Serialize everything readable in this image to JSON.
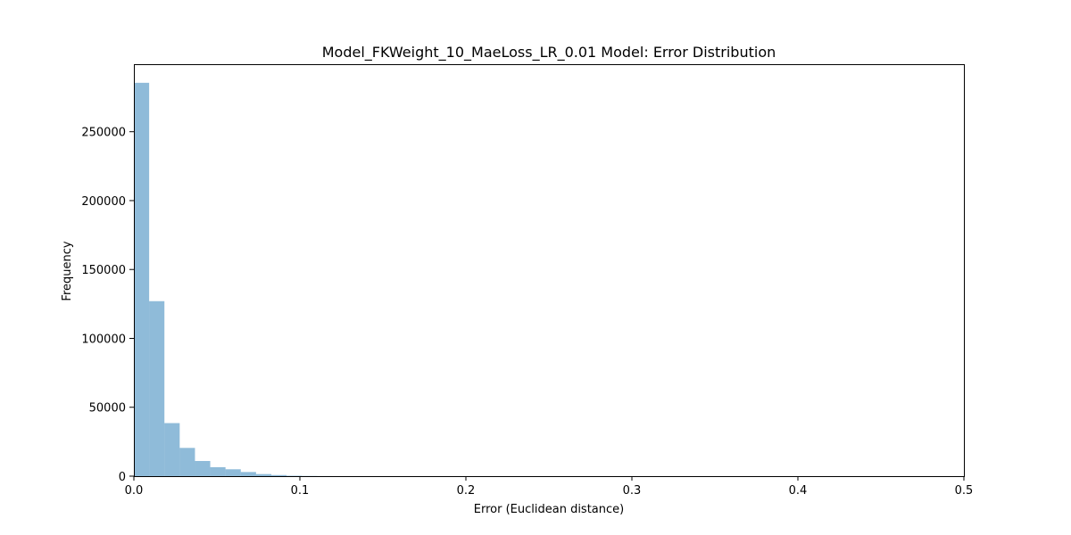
{
  "chart_data": {
    "type": "bar",
    "title": "Model_FKWeight_10_MaeLoss_LR_0.01 Model: Error Distribution",
    "xlabel": "Error (Euclidean distance)",
    "ylabel": "Frequency",
    "xlim": [
      0,
      0.5
    ],
    "ylim": [
      0,
      299000
    ],
    "grid": false,
    "legend": "none",
    "bar_color": "#1f77b4",
    "bar_opacity": 0.5,
    "x_ticks": [
      0.0,
      0.1,
      0.2,
      0.3,
      0.4,
      0.5
    ],
    "x_tick_labels": [
      "0.0",
      "0.1",
      "0.2",
      "0.3",
      "0.4",
      "0.5"
    ],
    "y_ticks": [
      0,
      50000,
      100000,
      150000,
      200000,
      250000
    ],
    "y_tick_labels": [
      "0",
      "50000",
      "100000",
      "150000",
      "200000",
      "250000"
    ],
    "bins": [
      {
        "x0": 0.0,
        "x1": 0.0092,
        "value": 285500
      },
      {
        "x0": 0.0092,
        "x1": 0.0184,
        "value": 127000
      },
      {
        "x0": 0.0184,
        "x1": 0.0276,
        "value": 38500
      },
      {
        "x0": 0.0276,
        "x1": 0.0368,
        "value": 20500
      },
      {
        "x0": 0.0368,
        "x1": 0.046,
        "value": 11000
      },
      {
        "x0": 0.046,
        "x1": 0.0552,
        "value": 6500
      },
      {
        "x0": 0.0552,
        "x1": 0.0644,
        "value": 5000
      },
      {
        "x0": 0.0644,
        "x1": 0.0736,
        "value": 3000
      },
      {
        "x0": 0.0736,
        "x1": 0.0828,
        "value": 1500
      },
      {
        "x0": 0.0828,
        "x1": 0.092,
        "value": 800
      },
      {
        "x0": 0.092,
        "x1": 0.1012,
        "value": 300
      },
      {
        "x0": 0.1012,
        "x1": 0.1104,
        "value": 150
      },
      {
        "x0": 0.1104,
        "x1": 0.1196,
        "value": 80
      },
      {
        "x0": 0.1196,
        "x1": 0.1288,
        "value": 40
      },
      {
        "x0": 0.1288,
        "x1": 0.138,
        "value": 20
      }
    ]
  }
}
